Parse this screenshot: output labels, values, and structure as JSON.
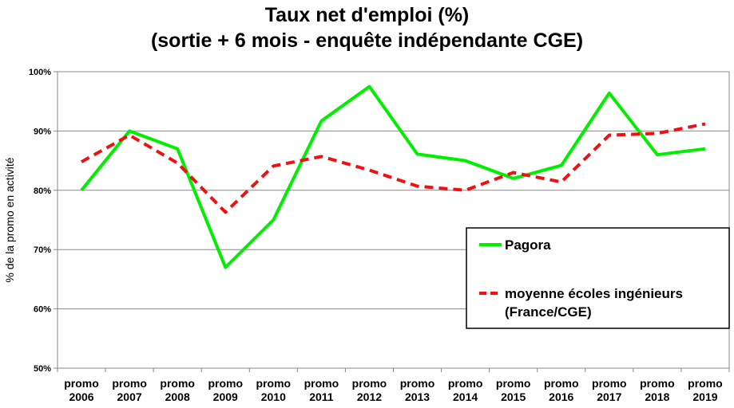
{
  "chart_data": {
    "type": "line",
    "title": "Taux net d'emploi (%)",
    "subtitle": "(sortie + 6 mois - enquête indépendante CGE)",
    "xlabel": "",
    "ylabel": "% de la promo en activité",
    "ylim": [
      50,
      100
    ],
    "yticks": [
      "50%",
      "60%",
      "70%",
      "80%",
      "90%",
      "100%"
    ],
    "categories": [
      [
        "promo",
        "2006"
      ],
      [
        "promo",
        "2007"
      ],
      [
        "promo",
        "2008"
      ],
      [
        "promo",
        "2009"
      ],
      [
        "promo",
        "2010"
      ],
      [
        "promo",
        "2011"
      ],
      [
        "promo",
        "2012"
      ],
      [
        "promo",
        "2013"
      ],
      [
        "promo",
        "2014"
      ],
      [
        "promo",
        "2015"
      ],
      [
        "promo",
        "2016"
      ],
      [
        "promo",
        "2017"
      ],
      [
        "promo",
        "2018"
      ],
      [
        "promo",
        "2019"
      ]
    ],
    "grid": true,
    "legend_position": "bottom-right",
    "series": [
      {
        "name": "Pagora",
        "name_lines": [
          "Pagora"
        ],
        "color": "#00ee00",
        "style": "solid",
        "values": [
          80,
          90,
          87,
          67,
          75,
          91.7,
          97.5,
          86.1,
          85,
          82,
          84.2,
          96.4,
          86,
          87
        ]
      },
      {
        "name": "moyenne écoles ingénieurs (France/CGE)",
        "name_lines": [
          "moyenne écoles ingénieurs",
          "(France/CGE)"
        ],
        "color": "#ee1111",
        "style": "dashed",
        "values": [
          84.8,
          89.3,
          84.6,
          76.3,
          84.1,
          85.7,
          83.4,
          80.7,
          80,
          83,
          81.4,
          89.3,
          89.6,
          91.2
        ]
      }
    ]
  }
}
